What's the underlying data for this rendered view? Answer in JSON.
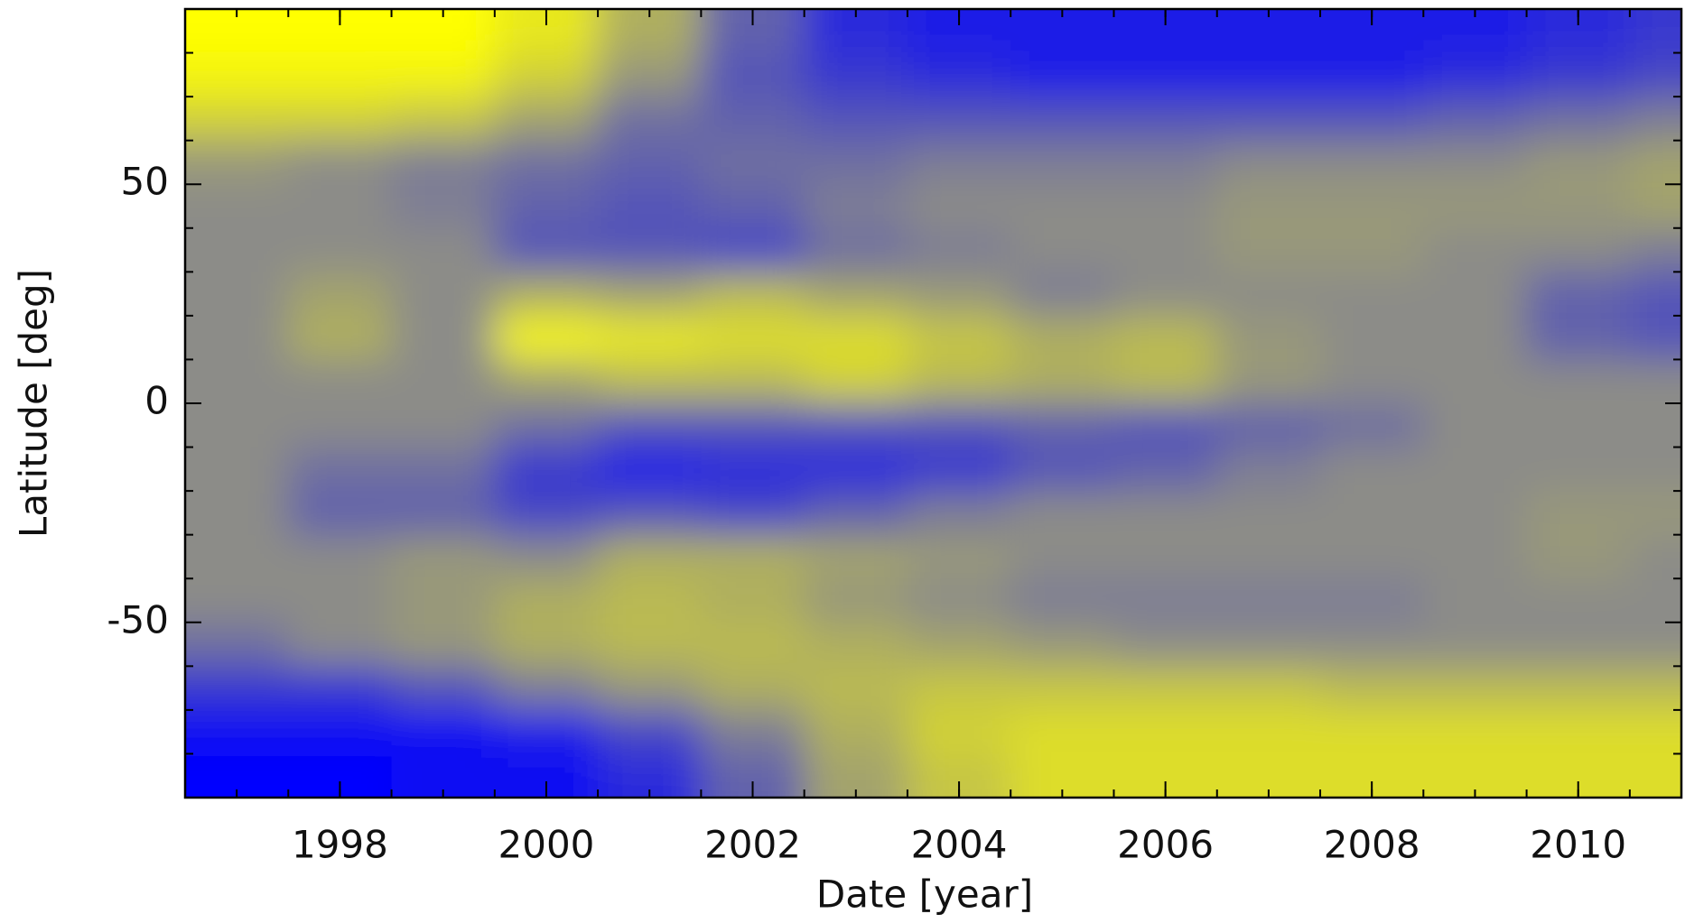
{
  "chart_data": {
    "type": "heatmap",
    "xlabel": "Date [year]",
    "ylabel": "Latitude [deg]",
    "xlim": [
      1996.5,
      2011.0
    ],
    "ylim": [
      -90,
      90
    ],
    "xticks": [
      1998,
      2000,
      2002,
      2004,
      2006,
      2008,
      2010
    ],
    "yticks": [
      -50,
      0,
      50
    ],
    "xminorticks": [
      1997,
      1997.5,
      1998,
      1998.5,
      1999,
      1999.5,
      2000,
      2000.5,
      2001,
      2001.5,
      2002,
      2002.5,
      2003,
      2003.5,
      2004,
      2004.5,
      2005,
      2005.5,
      2006,
      2006.5,
      2007,
      2007.5,
      2008,
      2008.5,
      2009,
      2009.5,
      2010,
      2010.5
    ],
    "yminorticks": [
      -80,
      -70,
      -60,
      -40,
      -30,
      -20,
      -10,
      10,
      20,
      30,
      40,
      60,
      70,
      80
    ],
    "xbins": [
      1996.5,
      1997.5,
      1998.5,
      1999.5,
      2000.5,
      2001.5,
      2002.5,
      2003.5,
      2004.5,
      2005.5,
      2006.5,
      2007.5,
      2008.5,
      2009.5,
      2010.5,
      2011.0
    ],
    "ybins": [
      -90,
      -80,
      -70,
      -60,
      -50,
      -40,
      -30,
      -20,
      -10,
      0,
      10,
      20,
      30,
      40,
      50,
      60,
      70,
      80,
      90
    ],
    "colors": {
      "negative": "#0000ff",
      "zero": "#8c8c88",
      "positive": "#ffff00"
    },
    "values": [
      [
        -1,
        -1,
        -0.9,
        -0.9,
        -0.7,
        -0.3,
        0.2,
        0.5,
        0.7,
        0.7,
        0.7,
        0.7,
        0.7,
        0.7,
        0.7
      ],
      [
        -0.9,
        -0.9,
        -0.9,
        -0.8,
        -0.5,
        -0.1,
        0.3,
        0.6,
        0.7,
        0.7,
        0.7,
        0.7,
        0.7,
        0.7,
        0.7
      ],
      [
        -0.6,
        -0.6,
        -0.4,
        -0.1,
        0.1,
        0.3,
        0.4,
        0.5,
        0.5,
        0.5,
        0.5,
        0.4,
        0.4,
        0.4,
        0.4
      ],
      [
        -0.2,
        0,
        0.1,
        0.3,
        0.4,
        0.4,
        0.3,
        0.2,
        0.1,
        0,
        0,
        0,
        0,
        0,
        0
      ],
      [
        0,
        0,
        0.1,
        0.3,
        0.4,
        0.3,
        0.1,
        0,
        -0.1,
        -0.1,
        -0.1,
        -0.1,
        0,
        0,
        0
      ],
      [
        0,
        0,
        0.1,
        0,
        0.3,
        0.3,
        0.2,
        0.1,
        0,
        0,
        0,
        0,
        0,
        0.1,
        0
      ],
      [
        0,
        -0.3,
        -0.3,
        -0.5,
        -0.4,
        -0.5,
        -0.3,
        -0.1,
        0,
        0,
        0,
        0,
        0,
        0.1,
        0.1
      ],
      [
        0,
        -0.2,
        -0.2,
        -0.6,
        -0.8,
        -0.7,
        -0.7,
        -0.6,
        -0.4,
        -0.3,
        -0.1,
        0,
        0,
        0,
        0
      ],
      [
        0,
        0,
        0,
        -0.2,
        -0.4,
        -0.4,
        -0.4,
        -0.4,
        -0.3,
        -0.4,
        -0.3,
        -0.2,
        0,
        0,
        0
      ],
      [
        0,
        0,
        0,
        0.2,
        0.4,
        0.4,
        0.6,
        0.4,
        0.3,
        0.4,
        0.1,
        0,
        0,
        0,
        0
      ],
      [
        0,
        0.3,
        0,
        0.9,
        0.8,
        0.7,
        0.7,
        0.5,
        0.3,
        0.4,
        0.1,
        0,
        0,
        -0.3,
        -0.4
      ],
      [
        0,
        0.2,
        0,
        0.3,
        0.2,
        0.4,
        0.2,
        0.1,
        -0.1,
        0,
        0,
        0,
        0,
        -0.3,
        -0.4
      ],
      [
        0,
        0,
        0,
        -0.4,
        -0.4,
        -0.5,
        -0.2,
        -0.1,
        0,
        0,
        0.1,
        0.1,
        0,
        0,
        -0.1
      ],
      [
        0,
        0,
        -0.1,
        -0.3,
        -0.4,
        -0.3,
        -0.1,
        0,
        0,
        0,
        0.1,
        0.1,
        0.1,
        0.1,
        0.2
      ],
      [
        0.1,
        0,
        -0.1,
        -0.2,
        -0.3,
        -0.2,
        -0.2,
        -0.1,
        -0.1,
        -0.1,
        0,
        0,
        0,
        0.1,
        0.2
      ],
      [
        0.6,
        0.6,
        0.5,
        0.2,
        -0.2,
        -0.3,
        -0.4,
        -0.4,
        -0.4,
        -0.4,
        -0.4,
        -0.4,
        -0.3,
        -0.2,
        -0.1
      ],
      [
        0.9,
        0.9,
        0.9,
        0.6,
        0.1,
        -0.4,
        -0.6,
        -0.7,
        -0.8,
        -0.8,
        -0.8,
        -0.8,
        -0.7,
        -0.6,
        -0.5
      ],
      [
        1,
        1,
        1,
        0.8,
        0.3,
        -0.3,
        -0.7,
        -0.8,
        -0.8,
        -0.8,
        -0.8,
        -0.8,
        -0.8,
        -0.7,
        -0.6
      ]
    ]
  }
}
